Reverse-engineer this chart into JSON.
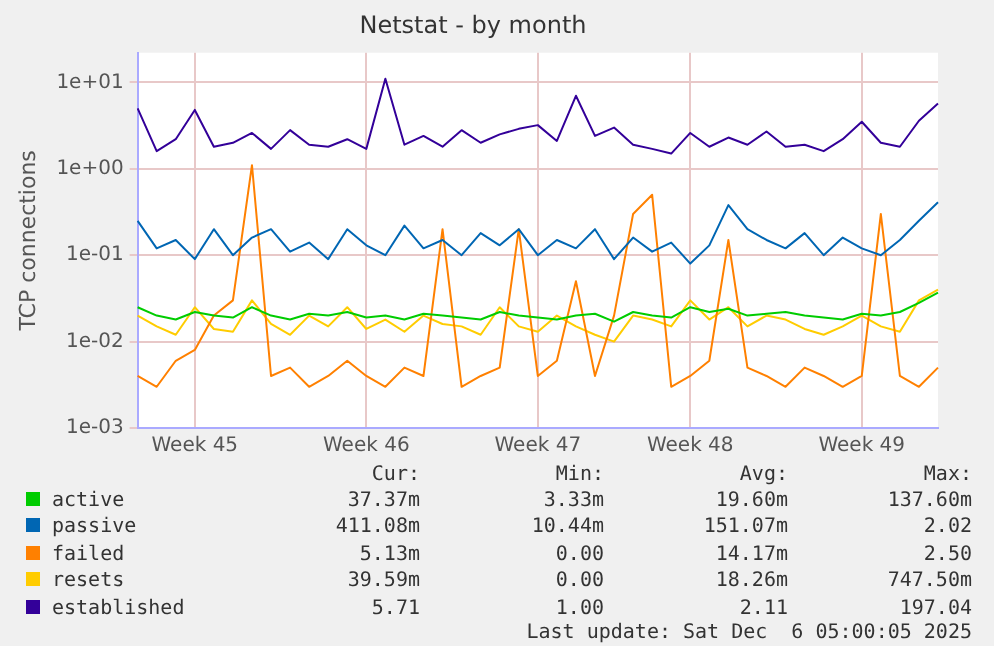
{
  "chart_data": {
    "type": "line",
    "title": "Netstat - by month",
    "ylabel": "TCP connections",
    "log": "y",
    "grid": true,
    "legend": "bottom",
    "marker": "none",
    "line_style": "solid",
    "categories": [
      null,
      null,
      null,
      "Week 45",
      null,
      null,
      null,
      null,
      null,
      null,
      null,
      null,
      "Week 46",
      null,
      null,
      null,
      null,
      null,
      null,
      null,
      null,
      "Week 47",
      null,
      null,
      null,
      null,
      null,
      null,
      null,
      "Week 48",
      null,
      null,
      null,
      null,
      null,
      null,
      null,
      null,
      "Week 49",
      null,
      null,
      null,
      null
    ],
    "ylim": [
      0.001,
      22
    ],
    "yticks": [
      {
        "value": 0.001,
        "label": "1e-03"
      },
      {
        "value": 0.01,
        "label": "1e-02"
      },
      {
        "value": 0.1,
        "label": "1e-01"
      },
      {
        "value": 1,
        "label": "1e+00"
      },
      {
        "value": 10,
        "label": "1e+01"
      }
    ],
    "series": [
      {
        "name": "active",
        "color": "#00cc00",
        "values": [
          0.025,
          0.02,
          0.018,
          0.022,
          0.02,
          0.019,
          0.025,
          0.02,
          0.018,
          0.021,
          0.02,
          0.022,
          0.019,
          0.02,
          0.018,
          0.021,
          0.02,
          0.019,
          0.018,
          0.022,
          0.02,
          0.019,
          0.018,
          0.02,
          0.021,
          0.017,
          0.022,
          0.02,
          0.019,
          0.025,
          0.022,
          0.024,
          0.02,
          0.021,
          0.022,
          0.02,
          0.019,
          0.018,
          0.021,
          0.02,
          0.022,
          0.028,
          0.037
        ]
      },
      {
        "name": "passive",
        "color": "#0066b3",
        "values": [
          0.25,
          0.12,
          0.15,
          0.09,
          0.2,
          0.1,
          0.16,
          0.2,
          0.11,
          0.14,
          0.09,
          0.2,
          0.13,
          0.1,
          0.22,
          0.12,
          0.15,
          0.1,
          0.18,
          0.13,
          0.2,
          0.1,
          0.15,
          0.12,
          0.2,
          0.09,
          0.16,
          0.11,
          0.14,
          0.08,
          0.13,
          0.38,
          0.2,
          0.15,
          0.12,
          0.18,
          0.1,
          0.16,
          0.12,
          0.1,
          0.15,
          0.25,
          0.41
        ]
      },
      {
        "name": "failed",
        "color": "#ff8000",
        "values": [
          0.004,
          0.003,
          0.006,
          0.008,
          0.02,
          0.03,
          1.1,
          0.004,
          0.005,
          0.003,
          0.004,
          0.006,
          0.004,
          0.003,
          0.005,
          0.004,
          0.2,
          0.003,
          0.004,
          0.005,
          0.2,
          0.004,
          0.006,
          0.05,
          0.004,
          0.02,
          0.3,
          0.5,
          0.003,
          0.004,
          0.006,
          0.15,
          0.005,
          0.004,
          0.003,
          0.005,
          0.004,
          0.003,
          0.004,
          0.3,
          0.004,
          0.003,
          0.005
        ]
      },
      {
        "name": "resets",
        "color": "#ffcc00",
        "values": [
          0.02,
          0.015,
          0.012,
          0.025,
          0.014,
          0.013,
          0.03,
          0.016,
          0.012,
          0.02,
          0.015,
          0.025,
          0.014,
          0.018,
          0.013,
          0.02,
          0.016,
          0.015,
          0.012,
          0.025,
          0.015,
          0.013,
          0.02,
          0.015,
          0.012,
          0.01,
          0.02,
          0.018,
          0.015,
          0.03,
          0.018,
          0.025,
          0.015,
          0.02,
          0.018,
          0.014,
          0.012,
          0.015,
          0.02,
          0.015,
          0.013,
          0.03,
          0.04
        ]
      },
      {
        "name": "established",
        "color": "#330099",
        "values": [
          5,
          1.6,
          2.2,
          4.8,
          1.8,
          2,
          2.6,
          1.7,
          2.8,
          1.9,
          1.8,
          2.2,
          1.7,
          11,
          1.9,
          2.4,
          1.8,
          2.8,
          2,
          2.5,
          2.9,
          3.2,
          2.1,
          7,
          2.4,
          3,
          1.9,
          1.7,
          1.5,
          2.6,
          1.8,
          2.3,
          1.9,
          2.7,
          1.8,
          1.9,
          1.6,
          2.2,
          3.5,
          2,
          1.8,
          3.6,
          5.7
        ]
      }
    ],
    "annotations": [
      "Cur:",
      "Min:",
      "Avg:",
      "Max:",
      "37.37m",
      "3.33m",
      "19.60m",
      "137.60m",
      "411.08m",
      "10.44m",
      "151.07m",
      "2.02",
      "5.13m",
      "0.00",
      "14.17m",
      "2.50",
      "39.59m",
      "0.00",
      "18.26m",
      "747.50m",
      "5.71",
      "1.00",
      "2.11",
      "197.04",
      "Last update: Sat Dec  6 05:00:05 2025"
    ]
  }
}
